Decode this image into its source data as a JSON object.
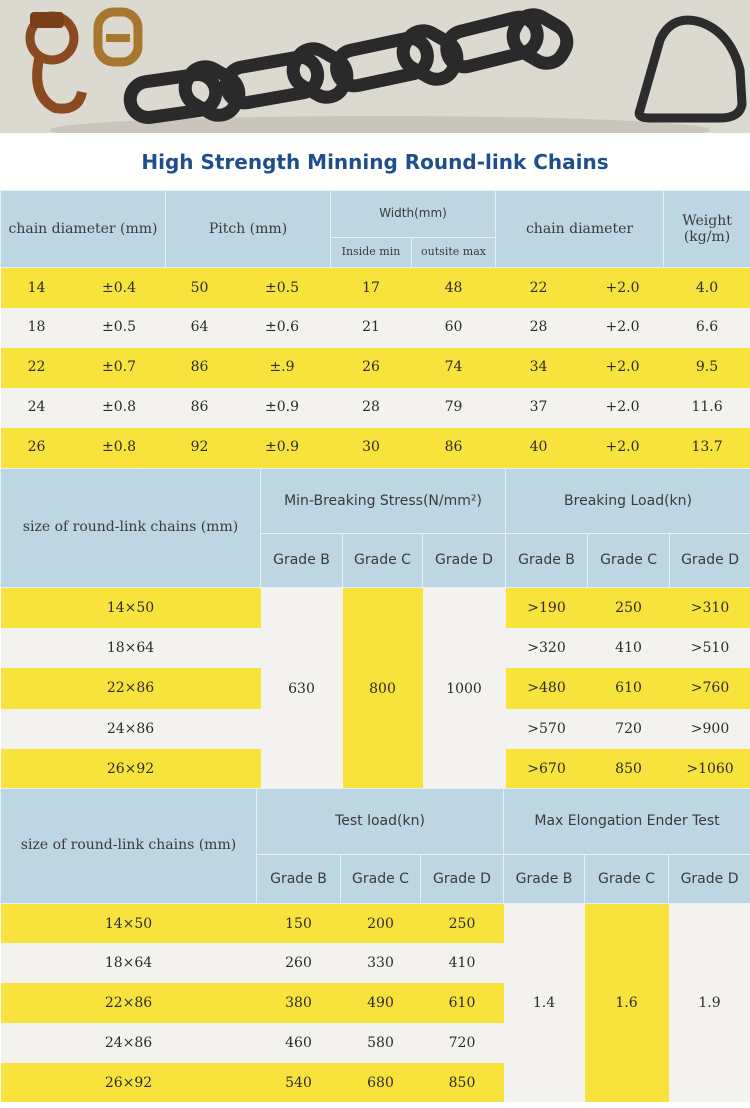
{
  "title": "High Strength Minning Round-link Chains",
  "table1": {
    "headers": {
      "chain_diameter": "chain diameter\n(mm)",
      "pitch": "Pitch\n(mm)",
      "width": "Width(mm)",
      "inside_min": "Inside min",
      "outside_max": "outsite max",
      "chain_diameter2": "chain diameter",
      "weight": "Weight\n(kg/m)"
    },
    "rows": [
      [
        "14",
        "±0.4",
        "50",
        "±0.5",
        "17",
        "48",
        "22",
        "+2.0",
        "4.0"
      ],
      [
        "18",
        "±0.5",
        "64",
        "±0.6",
        "21",
        "60",
        "28",
        "+2.0",
        "6.6"
      ],
      [
        "22",
        "±0.7",
        "86",
        "±.9",
        "26",
        "74",
        "34",
        "+2.0",
        "9.5"
      ],
      [
        "24",
        "±0.8",
        "86",
        "±0.9",
        "28",
        "79",
        "37",
        "+2.0",
        "11.6"
      ],
      [
        "26",
        "±0.8",
        "92",
        "±0.9",
        "30",
        "86",
        "40",
        "+2.0",
        "13.7"
      ]
    ]
  },
  "table2": {
    "headers": {
      "size": "size of round-link chains\n(mm)",
      "stress": "Min-Breaking Stress(N/mm²)",
      "load": "Breaking Load(kn)",
      "grades": [
        "Grade\nB",
        "Grade\nC",
        "Grade\nD",
        "Grade\nB",
        "Grade\nC",
        "Grade\nD"
      ]
    },
    "stress_values": [
      "630",
      "800",
      "1000"
    ],
    "rows": [
      {
        "size": "14×50",
        "b": ">190",
        "c": "250",
        "d": ">310"
      },
      {
        "size": "18×64",
        "b": ">320",
        "c": "410",
        "d": ">510"
      },
      {
        "size": "22×86",
        "b": ">480",
        "c": "610",
        "d": ">760"
      },
      {
        "size": "24×86",
        "b": ">570",
        "c": "720",
        "d": ">900"
      },
      {
        "size": "26×92",
        "b": ">670",
        "c": "850",
        "d": ">1060"
      }
    ]
  },
  "table3": {
    "headers": {
      "size": "size of round-link chains\n(mm)",
      "test": "Test load(kn)",
      "elong": "Max Elongation Ender Test",
      "grades": [
        "Grade\nB",
        "Grade\nC",
        "Grade\nD",
        "Grade\nB",
        "Grade\nC",
        "Grade\nD"
      ]
    },
    "elong_values": [
      "1.4",
      "1.6",
      "1.9"
    ],
    "rows": [
      {
        "size": "14×50",
        "b": "150",
        "c": "200",
        "d": "250"
      },
      {
        "size": "18×64",
        "b": "260",
        "c": "330",
        "d": "410"
      },
      {
        "size": "22×86",
        "b": "380",
        "c": "490",
        "d": "610"
      },
      {
        "size": "24×86",
        "b": "460",
        "c": "580",
        "d": "720"
      },
      {
        "size": "26×92",
        "b": "540",
        "c": "680",
        "d": "850"
      }
    ]
  }
}
